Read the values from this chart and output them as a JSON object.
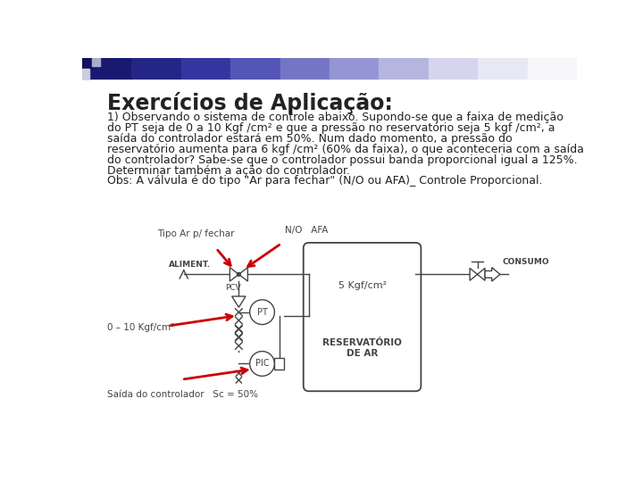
{
  "title": "Exercícios de Aplicação:",
  "title_fontsize": 17,
  "title_fontweight": "bold",
  "title_color": "#222222",
  "body_text": [
    "1) Observando o sistema de controle abaixo. Supondo-se que a faixa de medição",
    "do PT seja de 0 a 10 Kgf /cm² e que a pressão no reservatório seja 5 kgf /cm², a",
    "saída do controlador estará em 50%. Num dado momento, a pressão do",
    "reservatório aumenta para 6 kgf /cm² (60% da faixa), o que aconteceria com a saída",
    "do controlador? Sabe-se que o controlador possui banda proporcional igual a 125%.",
    "Determinar também a ação do controlador.",
    "Obs: A válvula é do tipo \"Ar para fechar\" (N/O ou AFA)_ Controle Proporcional."
  ],
  "body_fontsize": 9.0,
  "body_color": "#222222",
  "label_tipo": "Tipo Ar p/ fechar",
  "label_nio_afa": "N/O   AFA",
  "label_5kgf": "5 Kgf/cm²",
  "label_0_10": "0 – 10 Kgf/cm²",
  "label_saida": "Saída do controlador   Sc = 50%",
  "label_aliment": "ALIMENT.",
  "label_consumo": "CONSUMO",
  "label_reservatorio": "RESERVATÓRIO\nDE AR",
  "label_pcv": "PCV",
  "label_pt": "PT",
  "label_pic": "PIC",
  "diagram_line_color": "#444444",
  "arrow_color": "#cc0000",
  "background_color": "#ffffff",
  "header_colors": [
    "#191970",
    "#252585",
    "#3535a0",
    "#5555b5",
    "#7575c5",
    "#9595d5",
    "#b5b5e0",
    "#d5d5ee",
    "#e8e8f5",
    "#f5f5fa"
  ],
  "sq1_color": "#111160",
  "sq2_color": "#aaaacc",
  "sq3_color": "#ccccdd"
}
